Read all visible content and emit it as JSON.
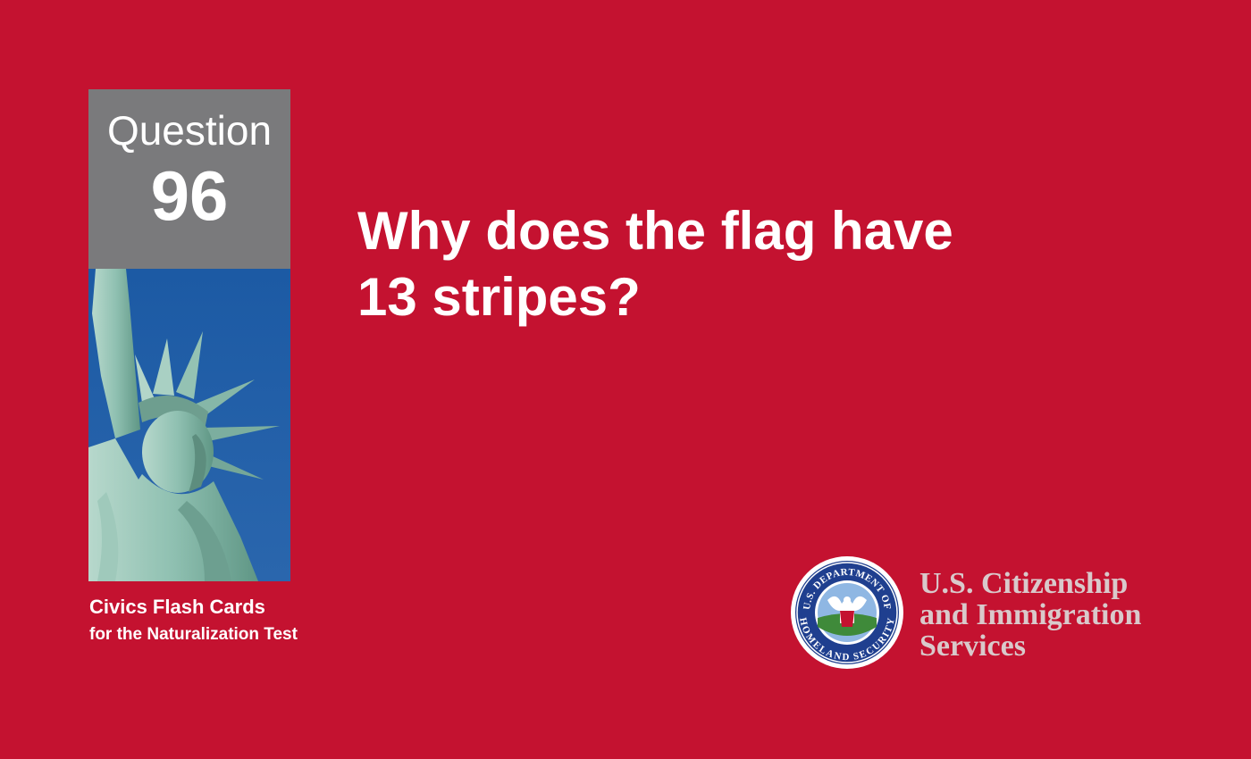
{
  "question_box": {
    "label": "Question",
    "number": "96"
  },
  "question": {
    "line1": "Why does the flag have",
    "line2": "13 stripes?"
  },
  "series": {
    "title": "Civics Flash Cards",
    "subtitle": "for the Naturalization Test"
  },
  "seal": {
    "top_text": "U.S. DEPARTMENT OF",
    "bottom_text": "HOMELAND SECURITY"
  },
  "agency": {
    "line1": "U.S. Citizenship",
    "line2": "and Immigration",
    "line3": "Services"
  },
  "colors": {
    "background": "#c41230",
    "question_box": "#7a7a7c",
    "sky": "#1d5ba3",
    "agency_text": "#d9c9cb"
  },
  "icons": {
    "photo": "statue-of-liberty-photo",
    "seal": "dhs-seal-icon"
  }
}
